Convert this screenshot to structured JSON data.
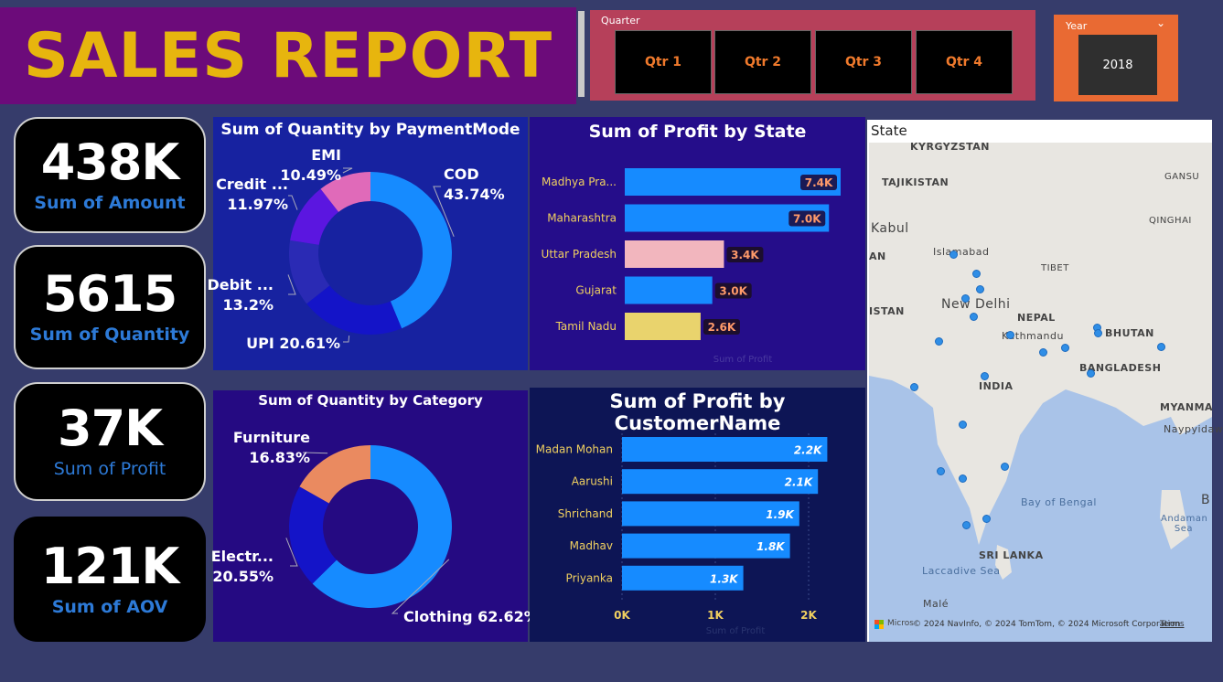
{
  "header": {
    "title": "SALES REPORT"
  },
  "quarter_slicer": {
    "label": "Quarter",
    "options": [
      "Qtr 1",
      "Qtr 2",
      "Qtr 3",
      "Qtr 4"
    ]
  },
  "year_slicer": {
    "label": "Year",
    "value": "2018"
  },
  "kpis": [
    {
      "value": "438K",
      "label": "Sum of Amount"
    },
    {
      "value": "5615",
      "label": "Sum of Quantity"
    },
    {
      "value": "37K",
      "label": "Sum of Profit"
    },
    {
      "value": "121K",
      "label": "Sum of AOV"
    }
  ],
  "colors": {
    "banner": "#6c0b7a",
    "title_text": "#e7b50e",
    "quarter_bg": "#b6405a",
    "year_bg": "#e96a33",
    "kpi_label": "#2d7ad7",
    "bar_blue": "#168bff",
    "pink": "#f2b6be",
    "yellow": "#e9d36d"
  },
  "map": {
    "title": "State",
    "labels": [
      "KYRGYZSTAN",
      "TAJIKISTAN",
      "Kabul",
      "Islamabad",
      "GANSU",
      "QINGHAI",
      "TIBET",
      "New Delhi",
      "NEPAL",
      "Kathmandu",
      "BHUTAN",
      "ISTAN",
      "AN",
      "BANGLADESH",
      "INDIA",
      "MYANMA",
      "Naypyidaw",
      "Bay of Bengal",
      "Andaman Sea",
      "SRI LANKA",
      "Laccadive Sea",
      "Malé",
      "B"
    ],
    "attribution": "© 2024 NavInfo, © 2024 TomTom, © 2024 Microsoft Corporation",
    "terms": "Terms",
    "brand": "Micros"
  },
  "chart_data": [
    {
      "type": "pie",
      "title": "Sum of Quantity by PaymentMode",
      "categories": [
        "COD",
        "UPI",
        "Debit ...",
        "Credit ...",
        "EMI"
      ],
      "values": [
        43.74,
        20.61,
        13.2,
        11.97,
        10.49
      ],
      "value_labels": [
        "43.74%",
        "20.61%",
        "13.2%",
        "11.97%",
        "10.49%"
      ],
      "colors": [
        "#168bff",
        "#1414c8",
        "#2a2ab4",
        "#5b16e0",
        "#e06ab9"
      ]
    },
    {
      "type": "bar",
      "orientation": "horizontal",
      "title": "Sum of Profit by State",
      "categories": [
        "Madhya Pra...",
        "Maharashtra",
        "Uttar Pradesh",
        "Gujarat",
        "Tamil Nadu"
      ],
      "values": [
        7.4,
        7.0,
        3.4,
        3.0,
        2.6
      ],
      "value_labels": [
        "7.4K",
        "7.0K",
        "3.4K",
        "3.0K",
        "2.6K"
      ],
      "colors": [
        "#168bff",
        "#168bff",
        "#f2b6be",
        "#168bff",
        "#e9d36d"
      ],
      "xlabel": "Sum of Profit"
    },
    {
      "type": "pie",
      "title": "Sum of Quantity by Category",
      "categories": [
        "Clothing",
        "Electr...",
        "Furniture"
      ],
      "values": [
        62.62,
        20.55,
        16.83
      ],
      "value_labels": [
        "62.62%",
        "20.55%",
        "16.83%"
      ],
      "colors": [
        "#168bff",
        "#1414c8",
        "#ea8a60"
      ]
    },
    {
      "type": "bar",
      "orientation": "horizontal",
      "title": "Sum of Profit by CustomerName",
      "categories": [
        "Madan Mohan",
        "Aarushi",
        "Shrichand",
        "Madhav",
        "Priyanka"
      ],
      "values": [
        2.2,
        2.1,
        1.9,
        1.8,
        1.3
      ],
      "value_labels": [
        "2.2K",
        "2.1K",
        "1.9K",
        "1.8K",
        "1.3K"
      ],
      "xticks": [
        "0K",
        "1K",
        "2K"
      ],
      "xlim": [
        0,
        2.5
      ],
      "xlabel": "Sum of Profit"
    }
  ]
}
